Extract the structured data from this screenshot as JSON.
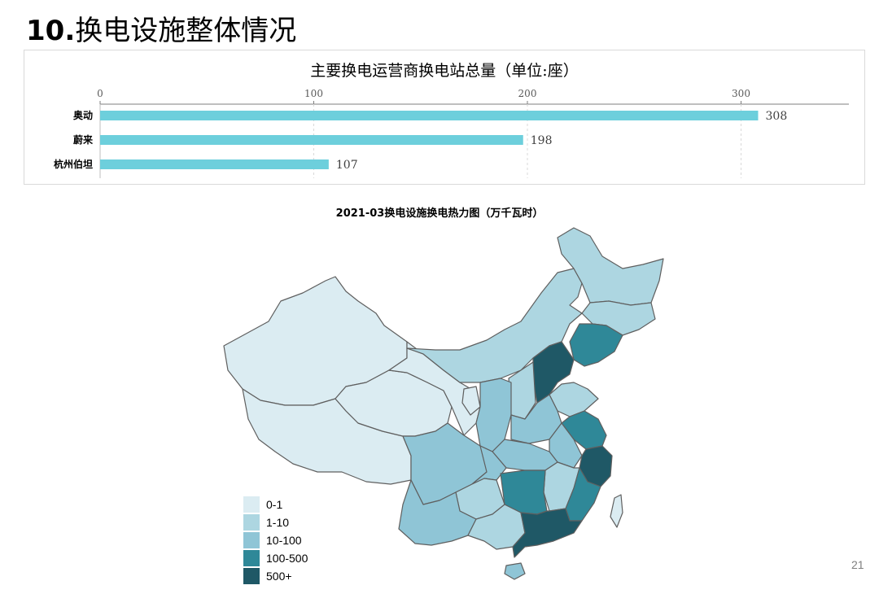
{
  "slide": {
    "title_num": "10.",
    "title_text": "换电设施整体情况",
    "page_number": "21"
  },
  "chart_data": [
    {
      "type": "bar",
      "orientation": "horizontal",
      "title": "主要换电运营商换电站总量（单位:座）",
      "categories": [
        "奥动",
        "蔚来",
        "杭州伯坦"
      ],
      "values": [
        308,
        198,
        107
      ],
      "xlim": [
        0,
        350
      ],
      "xticks": [
        0,
        100,
        200,
        300
      ],
      "x_axis_position": "top",
      "grid": true,
      "bar_color": "#6dcfdc",
      "data_labels": true
    },
    {
      "type": "heatmap",
      "subtype": "choropleth",
      "title": "2021-03换电设施换电热力图（万千瓦时）",
      "legend": [
        {
          "label": "0-1",
          "color": "#dbecf2"
        },
        {
          "label": "1-10",
          "color": "#add6e1"
        },
        {
          "label": "10-100",
          "color": "#8fc5d6"
        },
        {
          "label": "100-500",
          "color": "#2f8898"
        },
        {
          "label": "500+",
          "color": "#1f5866"
        }
      ],
      "legend_position": "bottom-left"
    }
  ]
}
